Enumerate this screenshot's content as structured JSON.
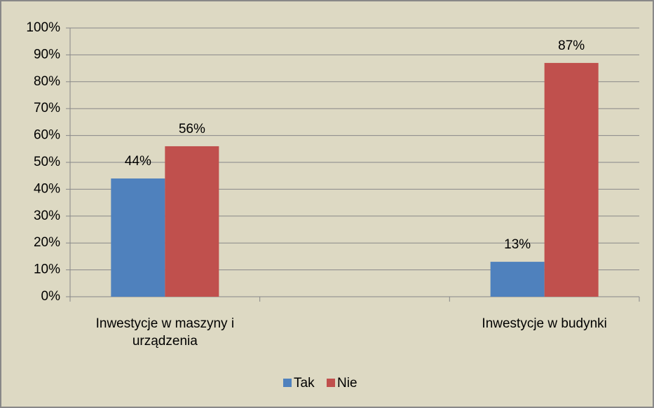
{
  "chart_data": {
    "type": "bar",
    "categories": [
      "Inwestycje w maszyny  i urządzenia",
      null,
      "Inwestycje w budynki"
    ],
    "series": [
      {
        "name": "Tak",
        "color": "#4f81bd",
        "values": [
          44,
          null,
          13
        ],
        "value_labels": [
          "44%",
          null,
          "13%"
        ]
      },
      {
        "name": "Nie",
        "color": "#c0504d",
        "values": [
          56,
          null,
          87
        ],
        "value_labels": [
          "56%",
          null,
          "87%"
        ]
      }
    ],
    "ylim": [
      0,
      100
    ],
    "yticks": [
      {
        "value": 0,
        "label": "0%"
      },
      {
        "value": 10,
        "label": "10%"
      },
      {
        "value": 20,
        "label": "20%"
      },
      {
        "value": 30,
        "label": "30%"
      },
      {
        "value": 40,
        "label": "40%"
      },
      {
        "value": 50,
        "label": "50%"
      },
      {
        "value": 60,
        "label": "60%"
      },
      {
        "value": 70,
        "label": "70%"
      },
      {
        "value": 80,
        "label": "80%"
      },
      {
        "value": 90,
        "label": "90%"
      },
      {
        "value": 100,
        "label": "100%"
      }
    ],
    "grid": true,
    "legend": "bottom"
  }
}
